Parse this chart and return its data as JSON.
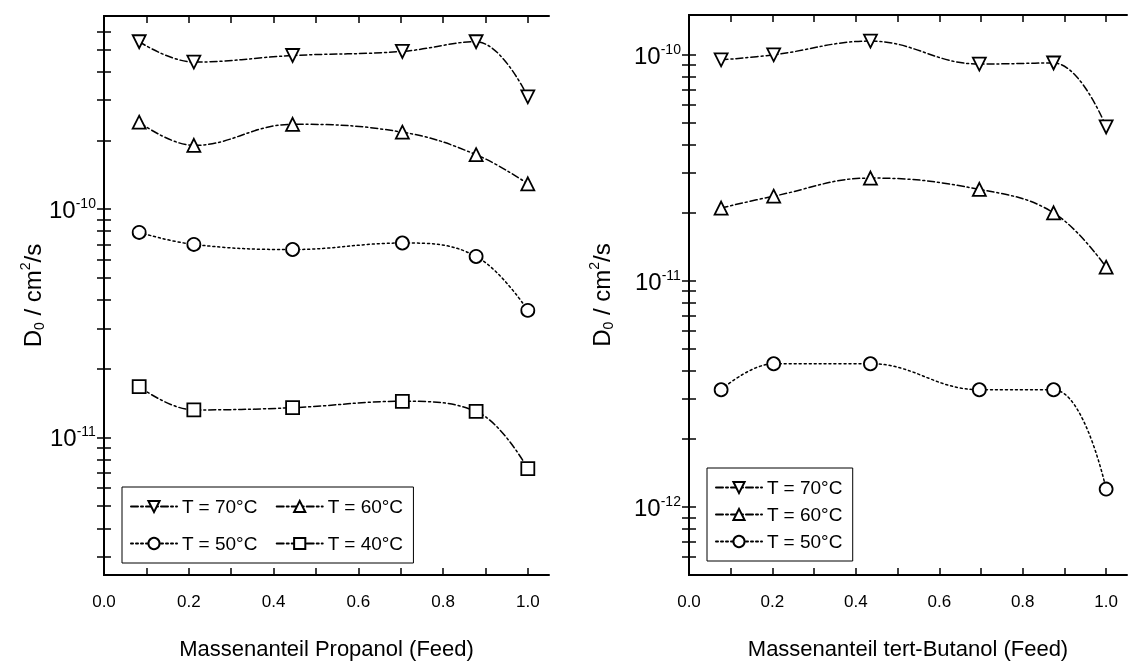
{
  "chart_data": [
    {
      "type": "line",
      "xlabel": "Massenanteil Propanol (Feed)",
      "ylabel": "D$_{0}$ / cm$^{2}$/s",
      "log": "y",
      "grid": false,
      "legend": "bottom left",
      "xlim": [
        0,
        1.05
      ],
      "ylim": [
        2.5e-12,
        7e-10
      ],
      "xticks": [
        {
          "value": 0,
          "label": "0.0"
        },
        {
          "value": 0.1,
          "label": null
        },
        {
          "value": 0.2,
          "label": "0.2"
        },
        {
          "value": 0.3,
          "label": null
        },
        {
          "value": 0.4,
          "label": "0.4"
        },
        {
          "value": 0.5,
          "label": null
        },
        {
          "value": 0.6,
          "label": "0.6"
        },
        {
          "value": 0.7,
          "label": null
        },
        {
          "value": 0.8,
          "label": "0.8"
        },
        {
          "value": 0.9,
          "label": null
        },
        {
          "value": 1,
          "label": "1.0"
        }
      ],
      "yticks": [
        {
          "value": 3e-12,
          "label": null
        },
        {
          "value": 4e-12,
          "label": null
        },
        {
          "value": 5e-12,
          "label": null
        },
        {
          "value": 6e-12,
          "label": null
        },
        {
          "value": 7e-12,
          "label": null
        },
        {
          "value": 8e-12,
          "label": null
        },
        {
          "value": 9e-12,
          "label": null
        },
        {
          "value": 1e-11,
          "label": "10$^{-11}$"
        },
        {
          "value": 2e-11,
          "label": null
        },
        {
          "value": 3e-11,
          "label": null
        },
        {
          "value": 4e-11,
          "label": null
        },
        {
          "value": 5e-11,
          "label": null
        },
        {
          "value": 6e-11,
          "label": null
        },
        {
          "value": 7e-11,
          "label": null
        },
        {
          "value": 8e-11,
          "label": null
        },
        {
          "value": 9e-11,
          "label": null
        },
        {
          "value": 1e-10,
          "label": "10$^{-10}$"
        },
        {
          "value": 2e-10,
          "label": null
        },
        {
          "value": 3e-10,
          "label": null
        },
        {
          "value": 4e-10,
          "label": null
        },
        {
          "value": 5e-10,
          "label": null
        },
        {
          "value": 6e-10,
          "label": null
        }
      ],
      "x": [
        0.083,
        0.212,
        0.445,
        0.704,
        0.878,
        1.0
      ],
      "series": [
        {
          "name": "T = 70°C",
          "color": "#000000",
          "marker": "triangle-down",
          "line_style": "dashed",
          "values": [
            5.4e-10,
            4.4e-10,
            4.7e-10,
            4.9e-10,
            5.4e-10,
            3.1e-10
          ]
        },
        {
          "name": "T = 60°C",
          "color": "#000000",
          "marker": "triangle",
          "line_style": "dashed",
          "values": [
            2.4e-10,
            1.9e-10,
            2.35e-10,
            2.17e-10,
            1.73e-10,
            1.29e-10
          ]
        },
        {
          "name": "T = 50°C",
          "color": "#000000",
          "marker": "circle",
          "line_style": "dotted",
          "values": [
            7.9e-11,
            7e-11,
            6.65e-11,
            7.1e-11,
            6.2e-11,
            3.6e-11
          ]
        },
        {
          "name": "T = 40°C",
          "color": "#000000",
          "marker": "square",
          "line_style": "dashed",
          "values": [
            1.67e-11,
            1.32e-11,
            1.35e-11,
            1.44e-11,
            1.3e-11,
            7.3e-12
          ]
        }
      ]
    },
    {
      "type": "line",
      "xlabel": "Massenanteil tert-Butanol (Feed)",
      "ylabel": "D$_{0}$ / cm$^{2}$/s",
      "log": "y",
      "grid": false,
      "legend": "bottom left",
      "xlim": [
        0,
        1.05
      ],
      "ylim": [
        5e-13,
        1.5e-10
      ],
      "xticks": [
        {
          "value": 0,
          "label": "0.0"
        },
        {
          "value": 0.1,
          "label": null
        },
        {
          "value": 0.2,
          "label": "0.2"
        },
        {
          "value": 0.3,
          "label": null
        },
        {
          "value": 0.4,
          "label": "0.4"
        },
        {
          "value": 0.5,
          "label": null
        },
        {
          "value": 0.6,
          "label": "0.6"
        },
        {
          "value": 0.7,
          "label": null
        },
        {
          "value": 0.8,
          "label": "0.8"
        },
        {
          "value": 0.9,
          "label": null
        },
        {
          "value": 1,
          "label": "1.0"
        }
      ],
      "yticks": [
        {
          "value": 6e-13,
          "label": null
        },
        {
          "value": 7e-13,
          "label": null
        },
        {
          "value": 8e-13,
          "label": null
        },
        {
          "value": 9e-13,
          "label": null
        },
        {
          "value": 1e-12,
          "label": "10$^{-12}$"
        },
        {
          "value": 2e-12,
          "label": null
        },
        {
          "value": 3e-12,
          "label": null
        },
        {
          "value": 4e-12,
          "label": null
        },
        {
          "value": 5e-12,
          "label": null
        },
        {
          "value": 6e-12,
          "label": null
        },
        {
          "value": 7e-12,
          "label": null
        },
        {
          "value": 8e-12,
          "label": null
        },
        {
          "value": 9e-12,
          "label": null
        },
        {
          "value": 1e-11,
          "label": "10$^{-11}$"
        },
        {
          "value": 2e-11,
          "label": null
        },
        {
          "value": 3e-11,
          "label": null
        },
        {
          "value": 4e-11,
          "label": null
        },
        {
          "value": 5e-11,
          "label": null
        },
        {
          "value": 6e-11,
          "label": null
        },
        {
          "value": 7e-11,
          "label": null
        },
        {
          "value": 8e-11,
          "label": null
        },
        {
          "value": 9e-11,
          "label": null
        },
        {
          "value": 1e-10,
          "label": "10$^{-10}$"
        }
      ],
      "x": [
        0.077,
        0.203,
        0.435,
        0.696,
        0.874,
        1.0
      ],
      "series": [
        {
          "name": "T = 70°C",
          "color": "#000000",
          "marker": "triangle-down",
          "line_style": "dashed",
          "values": [
            9.5e-11,
            1e-10,
            1.15e-10,
            9.1e-11,
            9.2e-11,
            4.8e-11
          ]
        },
        {
          "name": "T = 60°C",
          "color": "#000000",
          "marker": "triangle",
          "line_style": "dashed",
          "values": [
            2.1e-11,
            2.37e-11,
            2.85e-11,
            2.54e-11,
            2e-11,
            1.15e-11
          ]
        },
        {
          "name": "T = 50°C",
          "color": "#000000",
          "marker": "circle",
          "line_style": "dotted",
          "values": [
            3.3e-12,
            4.3e-12,
            4.3e-12,
            3.3e-12,
            3.3e-12,
            1.2e-12
          ]
        }
      ]
    }
  ]
}
